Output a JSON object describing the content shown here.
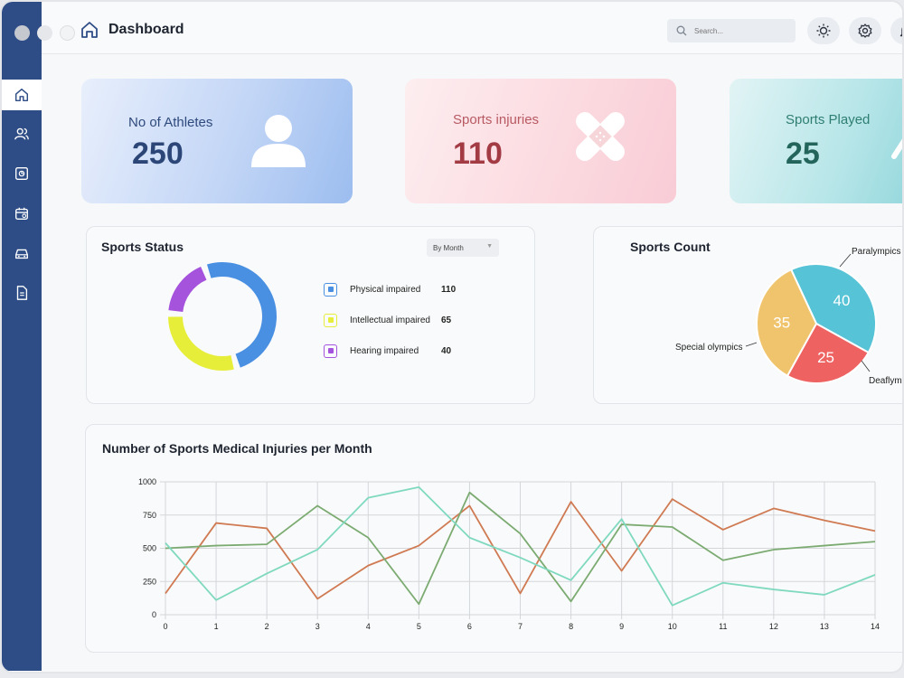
{
  "header": {
    "title": "Dashboard",
    "search_placeholder": "Search..."
  },
  "sidebar": {
    "items": [
      "home-icon",
      "users-icon",
      "report-icon",
      "calendar-icon",
      "vehicle-icon",
      "document-icon"
    ]
  },
  "stats": [
    {
      "label": "No of Athletes",
      "value": "250",
      "icon": "person-icon"
    },
    {
      "label": "Sports injuries",
      "value": "110",
      "icon": "bandage-icon"
    },
    {
      "label": "Sports Played",
      "value": "25",
      "icon": "sports-icon"
    }
  ],
  "sports_status": {
    "title": "Sports Status",
    "dropdown": "By Month",
    "legend": [
      {
        "label": "Physical impaired",
        "value": "110",
        "color": "#4a90e2"
      },
      {
        "label": "Intellectual impaired",
        "value": "65",
        "color": "#e6ee3a"
      },
      {
        "label": "Hearing impaired",
        "value": "40",
        "color": "#a552dc"
      }
    ]
  },
  "sports_count": {
    "title": "Sports Count",
    "labels": [
      "Paralympics",
      "Special olympics",
      "Deaflympics"
    ]
  },
  "injuries_chart": {
    "title": "Number of Sports Medical Injuries per Month"
  },
  "chart_data": [
    {
      "type": "pie",
      "title": "Sports Status",
      "categories": [
        "Physical impaired",
        "Intellectual impaired",
        "Hearing impaired"
      ],
      "values": [
        110,
        65,
        40
      ],
      "colors": [
        "#4a90e2",
        "#e6ee3a",
        "#a552dc"
      ]
    },
    {
      "type": "pie",
      "title": "Sports Count",
      "categories": [
        "Paralympics",
        "Deaflympics",
        "Special olympics"
      ],
      "values": [
        40,
        25,
        35
      ],
      "colors": [
        "#56c3d6",
        "#ee6262",
        "#f0c46c"
      ]
    },
    {
      "type": "line",
      "title": "Number of Sports Medical Injuries per Month",
      "x": [
        0,
        1,
        2,
        3,
        4,
        5,
        6,
        7,
        8,
        9,
        10,
        11,
        12,
        13,
        14
      ],
      "ylim": [
        0,
        1000
      ],
      "yticks": [
        0,
        250,
        500,
        750,
        1000
      ],
      "series": [
        {
          "color": "#cf7a52",
          "values": [
            160,
            690,
            650,
            120,
            370,
            520,
            820,
            160,
            850,
            330,
            870,
            640,
            800,
            710,
            630
          ]
        },
        {
          "color": "#7cab72",
          "values": [
            500,
            520,
            530,
            820,
            580,
            80,
            920,
            610,
            100,
            680,
            660,
            410,
            490,
            520,
            550
          ]
        },
        {
          "color": "#7fd9bf",
          "values": [
            540,
            110,
            310,
            490,
            880,
            960,
            580,
            430,
            260,
            720,
            70,
            240,
            190,
            150,
            300
          ]
        }
      ]
    }
  ]
}
